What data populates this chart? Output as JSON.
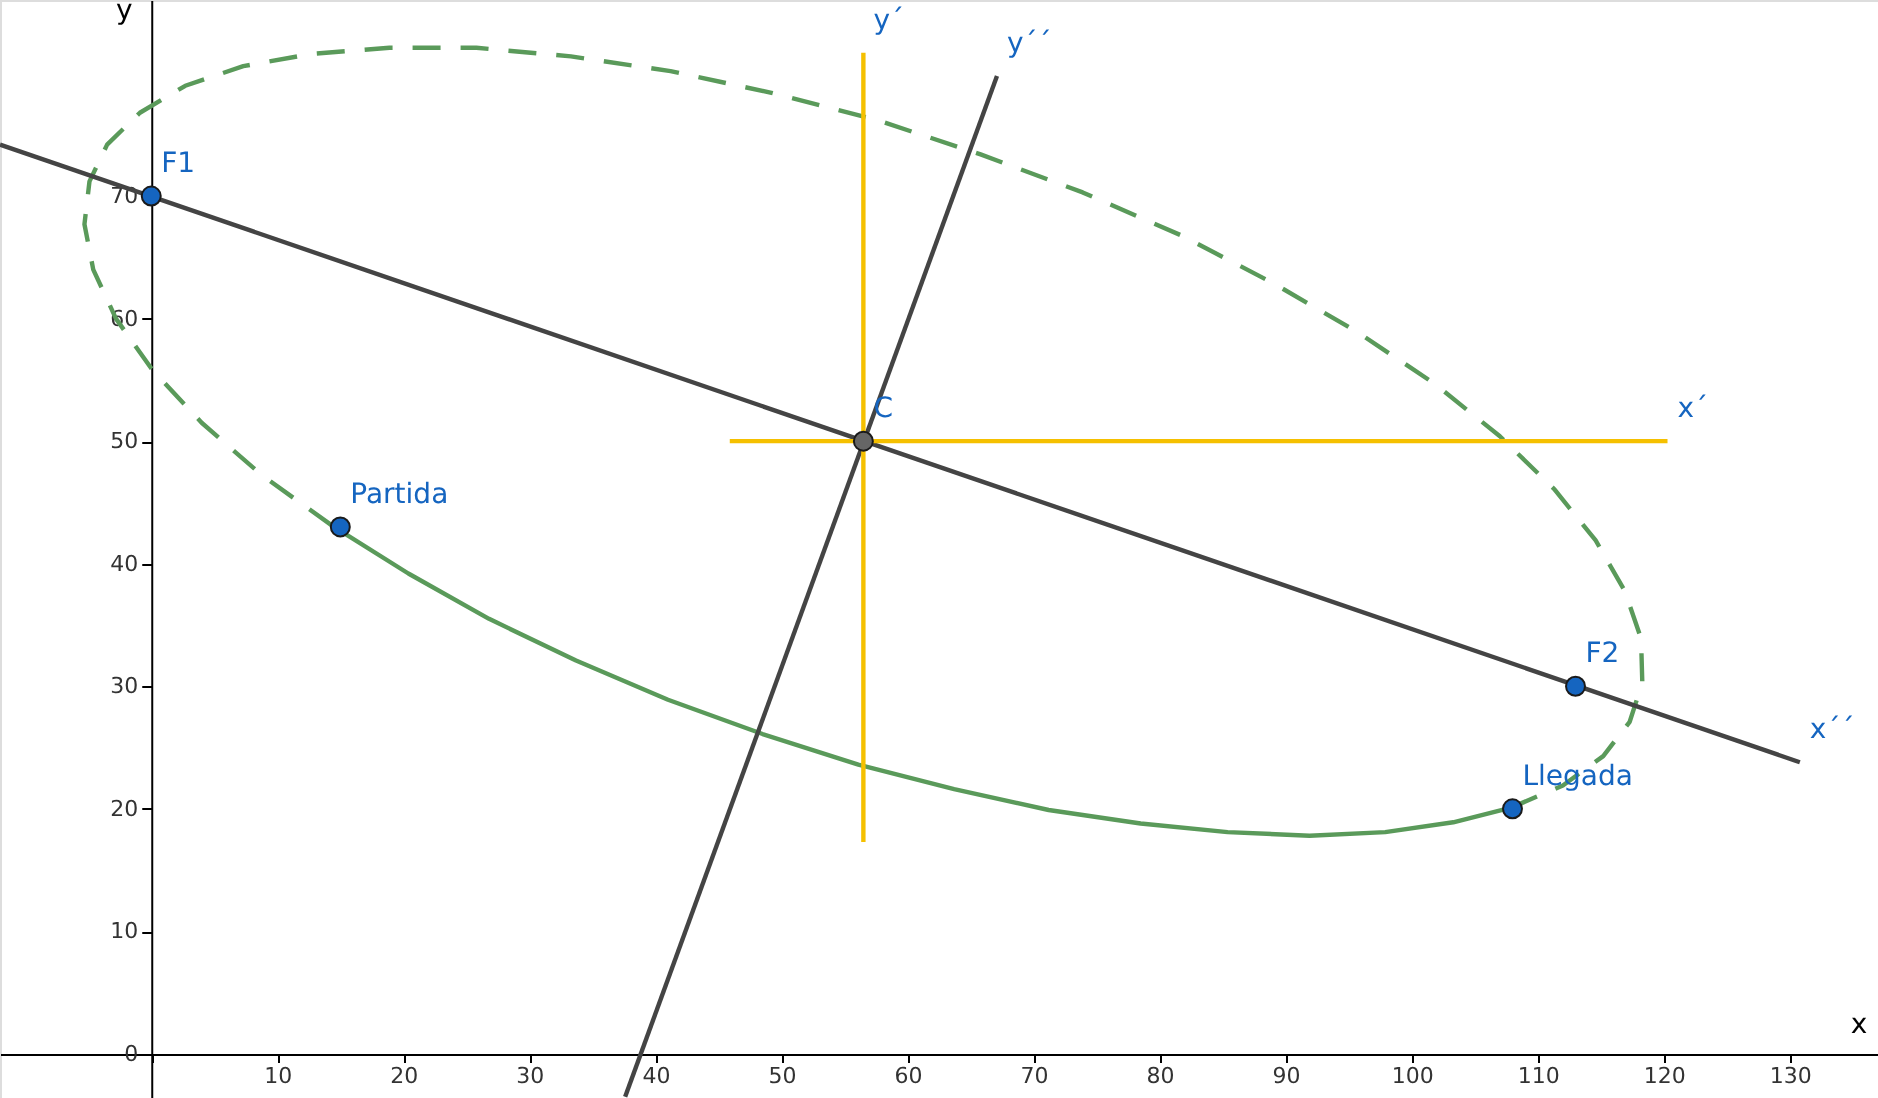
{
  "chart_data": {
    "type": "line",
    "xlabel": "x",
    "ylabel": "y",
    "xlim": [
      -12,
      137
    ],
    "ylim": [
      -3.6,
      86
    ],
    "xticks": [
      {
        "value": 0,
        "label": null
      },
      10,
      20,
      30,
      40,
      50,
      60,
      70,
      80,
      90,
      100,
      110,
      120,
      130
    ],
    "yticks": [
      0,
      10,
      20,
      30,
      40,
      50,
      60,
      70
    ],
    "grid": false,
    "series": [
      {
        "line_style": "dashed",
        "color": "#5a9a5a",
        "x": [
          107.9,
          112.0,
          115.2,
          117.3,
          118.3,
          118.2,
          116.9,
          114.6,
          111.3,
          107.0,
          101.8,
          95.7,
          89.0,
          81.7,
          73.9,
          65.8,
          57.6,
          49.3,
          41.2,
          33.3,
          25.8,
          18.9,
          12.7,
          7.3,
          2.7,
          -0.9,
          -3.5,
          -4.9,
          -5.3,
          -4.6,
          -2.8,
          0.1,
          4.0,
          8.8,
          14.5
        ],
        "values": [
          20.1,
          21.9,
          24.3,
          27.1,
          30.3,
          33.9,
          37.8,
          41.9,
          46.1,
          50.4,
          54.7,
          58.9,
          62.9,
          66.8,
          70.3,
          73.4,
          76.2,
          78.4,
          80.2,
          81.4,
          82.1,
          82.1,
          81.6,
          80.6,
          79.0,
          76.8,
          74.2,
          71.2,
          67.7,
          64.0,
          60.0,
          55.8,
          51.5,
          47.2,
          43.0
        ]
      },
      {
        "line_style": "solid",
        "color": "#5a9a5a",
        "x": [
          14.5,
          20.4,
          26.8,
          33.7,
          41.0,
          48.5,
          56.1,
          63.7,
          71.2,
          78.5,
          85.4,
          91.9,
          97.9,
          103.3,
          107.9
        ],
        "values": [
          43.0,
          39.2,
          35.5,
          32.1,
          28.9,
          26.1,
          23.6,
          21.6,
          19.9,
          18.8,
          18.1,
          17.8,
          18.1,
          18.9,
          20.1
        ]
      },
      {
        "line_style": "solid",
        "color": "#444444",
        "x": [
          -12,
          130.8
        ],
        "values": [
          74.2,
          23.8
        ]
      },
      {
        "line_style": "solid",
        "color": "#444444",
        "x": [
          37.6,
          67.1
        ],
        "values": [
          -3.5,
          79.8
        ]
      },
      {
        "line_style": "solid",
        "color": "#f5c000",
        "x": [
          56.5,
          56.5
        ],
        "values": [
          17.3,
          81.7
        ]
      },
      {
        "line_style": "solid",
        "color": "#f5c000",
        "x": [
          45.9,
          120.3
        ],
        "values": [
          50,
          50
        ]
      },
      {
        "type": "scatter",
        "marker": "circle",
        "color": "#1565c0",
        "x": [
          0,
          113,
          15,
          108
        ],
        "values": [
          70,
          30,
          43,
          20
        ]
      },
      {
        "type": "scatter",
        "marker": "circle",
        "color": "#666666",
        "x": [
          56.5
        ],
        "values": [
          50
        ]
      }
    ],
    "annotations": [
      {
        "text": "F1",
        "x": 0,
        "y": 70
      },
      {
        "text": "F2",
        "x": 113,
        "y": 30
      },
      {
        "text": "Partida",
        "x": 15,
        "y": 43
      },
      {
        "text": "Llegada",
        "x": 108,
        "y": 20
      },
      {
        "text": "C",
        "x": 56.5,
        "y": 50
      },
      {
        "text": "x´´",
        "x": 130.8,
        "y": 23.8
      },
      {
        "text": "y´´",
        "x": 67.1,
        "y": 79.8
      },
      {
        "text": "y´",
        "x": 56.5,
        "y": 81.7
      },
      {
        "text": "x´",
        "x": 120.3,
        "y": 50
      }
    ]
  }
}
